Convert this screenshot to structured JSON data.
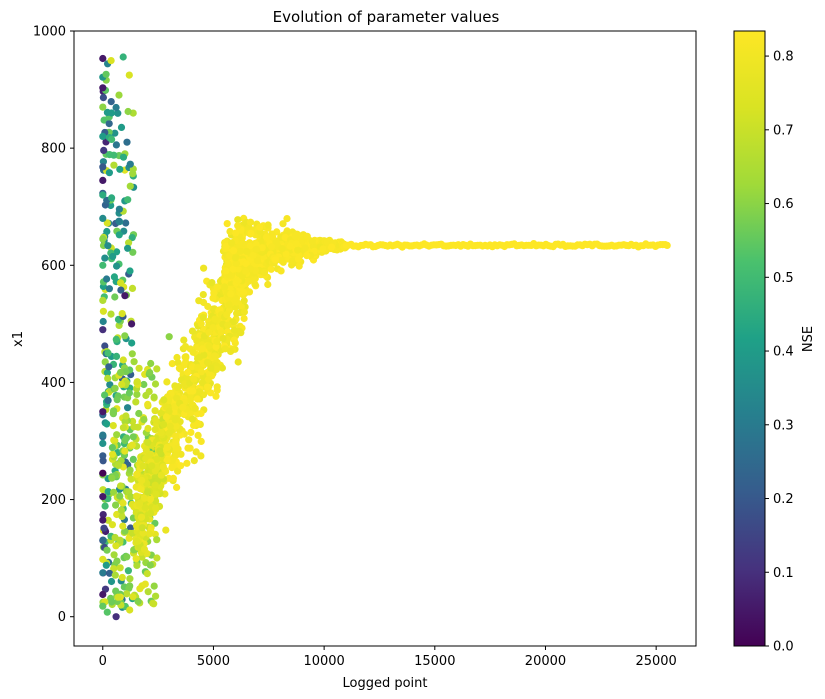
{
  "chart_data": {
    "type": "scatter",
    "title": "Evolution of parameter values",
    "xlabel": "Logged point",
    "ylabel": "x1",
    "xlim": [
      -1300,
      26800
    ],
    "ylim": [
      -50,
      1000
    ],
    "xticks": [
      0,
      5000,
      10000,
      15000,
      20000,
      25000
    ],
    "yticks": [
      0,
      200,
      400,
      600,
      800,
      1000
    ],
    "grid": false,
    "colorbar": {
      "label": "NSE",
      "colormap": "viridis",
      "range": [
        0.0,
        0.834
      ],
      "ticks": [
        0.0,
        0.1,
        0.2,
        0.3,
        0.4,
        0.5,
        0.6,
        0.7,
        0.8
      ]
    },
    "x_range_of_points": [
      0,
      25500
    ],
    "converged_value": 634,
    "sample_points": [
      {
        "x": 0,
        "y": 953,
        "nse": 0.05
      },
      {
        "x": 0,
        "y": 903,
        "nse": 0.05
      },
      {
        "x": 0,
        "y": 870,
        "nse": 0.6
      },
      {
        "x": 0,
        "y": 820,
        "nse": 0.4
      },
      {
        "x": 0,
        "y": 768,
        "nse": 0.2
      },
      {
        "x": 0,
        "y": 745,
        "nse": 0.05
      },
      {
        "x": 0,
        "y": 720,
        "nse": 0.45
      },
      {
        "x": 0,
        "y": 680,
        "nse": 0.35
      },
      {
        "x": 0,
        "y": 645,
        "nse": 0.6
      },
      {
        "x": 0,
        "y": 600,
        "nse": 0.5
      },
      {
        "x": 0,
        "y": 490,
        "nse": 0.1
      },
      {
        "x": 0,
        "y": 350,
        "nse": 0.05
      },
      {
        "x": 0,
        "y": 310,
        "nse": 0.3
      },
      {
        "x": 0,
        "y": 245,
        "nse": 0.0
      },
      {
        "x": 0,
        "y": 205,
        "nse": 0.05
      },
      {
        "x": 0,
        "y": 165,
        "nse": 0.05
      },
      {
        "x": 0,
        "y": 75,
        "nse": 0.3
      },
      {
        "x": 0,
        "y": 38,
        "nse": 0.05
      },
      {
        "x": 0,
        "y": 18,
        "nse": 0.55
      },
      {
        "x": 300,
        "y": 818,
        "nse": 0.45
      },
      {
        "x": 300,
        "y": 758,
        "nse": 0.4
      },
      {
        "x": 300,
        "y": 560,
        "nse": 0.3
      },
      {
        "x": 400,
        "y": 860,
        "nse": 0.4
      },
      {
        "x": 400,
        "y": 815,
        "nse": 0.5
      },
      {
        "x": 400,
        "y": 715,
        "nse": 0.45
      },
      {
        "x": 450,
        "y": 615,
        "nse": 0.4
      },
      {
        "x": 500,
        "y": 788,
        "nse": 0.5
      },
      {
        "x": 600,
        "y": 0,
        "nse": 0.1
      },
      {
        "x": 1000,
        "y": 548,
        "nse": 0.05
      },
      {
        "x": 1300,
        "y": 500,
        "nse": 0.05
      },
      {
        "x": 2300,
        "y": 22,
        "nse": 0.7
      },
      {
        "x": 3000,
        "y": 478,
        "nse": 0.6
      },
      {
        "x": 3800,
        "y": 262,
        "nse": 0.82
      },
      {
        "x": 6000,
        "y": 655,
        "nse": 0.83
      },
      {
        "x": 7100,
        "y": 665,
        "nse": 0.83
      },
      {
        "x": 25500,
        "y": 634,
        "nse": 0.834
      }
    ]
  }
}
